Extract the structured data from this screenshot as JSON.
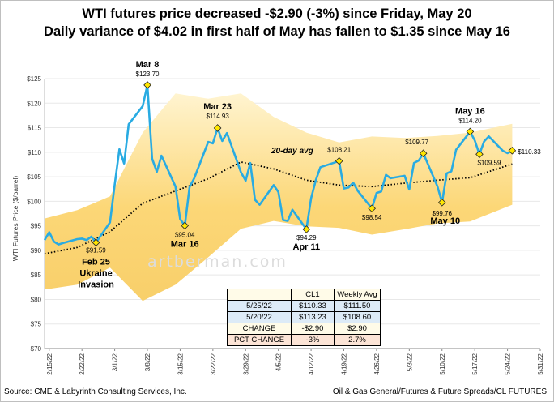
{
  "title_line1": "WTI futures price decreased -$2.90 (-3%) since Friday, May 20",
  "title_line2": "Daily variance of $4.02 in first half of May has fallen to $1.35 since May 16",
  "source": "Source: CME & Labyrinth Consulting Services, Inc.",
  "source_right": "Oil & Gas General/Futures & Future Spreads/CL FUTURES",
  "watermark": "artberman.com",
  "colors": {
    "price_line": "#29abe2",
    "band": "#fcd777",
    "avg_line": "#000000",
    "marker": "#ffe600"
  },
  "table": {
    "headers": [
      "",
      "CL1",
      "Weekly Avg"
    ],
    "rows": [
      [
        "5/25/22",
        "$110.33",
        "$111.50"
      ],
      [
        "5/20/22",
        "$113.23",
        "$108.60"
      ],
      [
        "CHANGE",
        "-$2.90",
        "$2.90"
      ],
      [
        "PCT CHANGE",
        "-3%",
        "2.7%"
      ]
    ]
  },
  "chart_data": {
    "type": "line",
    "ylabel": "WTI Futures Price ($/barrel)",
    "ylim": [
      70,
      125
    ],
    "yticks": [
      "$70",
      "$75",
      "$80",
      "$85",
      "$90",
      "$95",
      "$100",
      "$105",
      "$110",
      "$115",
      "$120",
      "$125"
    ],
    "xticks": [
      "2/15/22",
      "2/22/22",
      "3/1/22",
      "3/8/22",
      "3/15/22",
      "3/22/22",
      "3/29/22",
      "4/5/22",
      "4/12/22",
      "4/19/22",
      "4/26/22",
      "5/3/22",
      "5/10/22",
      "5/17/22",
      "5/24/22",
      "5/31/22"
    ],
    "series": [
      {
        "role": "price",
        "x": [
          "2/14/22",
          "2/15/22",
          "2/16/22",
          "2/17/22",
          "2/18/22",
          "2/21/22",
          "2/22/22",
          "2/23/22",
          "2/24/22",
          "2/25/22",
          "2/28/22",
          "3/1/22",
          "3/2/22",
          "3/3/22",
          "3/4/22",
          "3/7/22",
          "3/8/22",
          "3/9/22",
          "3/10/22",
          "3/11/22",
          "3/14/22",
          "3/15/22",
          "3/16/22",
          "3/17/22",
          "3/18/22",
          "3/21/22",
          "3/22/22",
          "3/23/22",
          "3/24/22",
          "3/25/22",
          "3/28/22",
          "3/29/22",
          "3/30/22",
          "3/31/22",
          "4/1/22",
          "4/4/22",
          "4/5/22",
          "4/6/22",
          "4/7/22",
          "4/8/22",
          "4/11/22",
          "4/12/22",
          "4/13/22",
          "4/14/22",
          "4/18/22",
          "4/19/22",
          "4/20/22",
          "4/21/22",
          "4/22/22",
          "4/25/22",
          "4/26/22",
          "4/27/22",
          "4/28/22",
          "4/29/22",
          "5/2/22",
          "5/3/22",
          "5/4/22",
          "5/5/22",
          "5/6/22",
          "5/9/22",
          "5/10/22",
          "5/11/22",
          "5/12/22",
          "5/13/22",
          "5/16/22",
          "5/17/22",
          "5/18/22",
          "5/19/22",
          "5/20/22",
          "5/23/22",
          "5/24/22",
          "5/25/22"
        ],
        "values": [
          92.1,
          93.7,
          91.8,
          91.2,
          91.5,
          92.3,
          92.4,
          92.1,
          92.8,
          91.6,
          95.7,
          103.4,
          110.6,
          107.7,
          115.7,
          119.4,
          123.7,
          108.7,
          106.0,
          109.3,
          103.0,
          96.4,
          95.04,
          102.9,
          104.7,
          112.1,
          111.8,
          114.93,
          112.3,
          113.9,
          105.9,
          104.2,
          107.8,
          100.3,
          99.3,
          103.3,
          101.9,
          96.2,
          96.0,
          98.3,
          94.29,
          100.6,
          104.3,
          106.95,
          108.21,
          102.6,
          102.8,
          103.8,
          102.1,
          98.54,
          101.7,
          102.0,
          105.4,
          104.7,
          105.2,
          102.4,
          107.8,
          108.3,
          109.77,
          103.09,
          99.76,
          105.7,
          106.1,
          110.5,
          114.2,
          112.4,
          109.59,
          112.2,
          113.23,
          110.3,
          109.8,
          110.33
        ]
      },
      {
        "role": "20-day avg",
        "x": [
          "2/14/22",
          "2/21/22",
          "2/28/22",
          "3/7/22",
          "3/14/22",
          "3/21/22",
          "3/28/22",
          "4/4/22",
          "4/11/22",
          "4/18/22",
          "4/25/22",
          "5/2/22",
          "5/9/22",
          "5/16/22",
          "5/25/22"
        ],
        "values": [
          89.3,
          90.6,
          93.8,
          99.6,
          102.1,
          104.6,
          108.0,
          106.6,
          104.3,
          103.3,
          103.0,
          103.7,
          104.3,
          104.8,
          107.6
        ]
      }
    ],
    "band": {
      "x": [
        "2/14/22",
        "2/21/22",
        "2/28/22",
        "3/7/22",
        "3/14/22",
        "3/21/22",
        "3/28/22",
        "4/4/22",
        "4/11/22",
        "4/18/22",
        "4/25/22",
        "5/2/22",
        "5/9/22",
        "5/16/22",
        "5/25/22"
      ],
      "upper": [
        96.5,
        98.2,
        101.0,
        114.0,
        122.0,
        120.9,
        122.0,
        117.2,
        114.0,
        112.0,
        113.2,
        112.9,
        113.3,
        114.0,
        115.8
      ],
      "lower": [
        82.0,
        83.0,
        86.5,
        79.7,
        83.0,
        88.6,
        94.4,
        96.0,
        94.9,
        94.6,
        93.2,
        94.3,
        95.5,
        95.9,
        99.3
      ]
    },
    "annotations": [
      {
        "date": "2/25/22",
        "value": 91.59,
        "price": "$91.59",
        "label": "Feb 25",
        "sub": "Ukraine",
        "sub2": "Invasion"
      },
      {
        "date": "3/8/22",
        "value": 123.7,
        "price": "$123.70",
        "label": "Mar 8"
      },
      {
        "date": "3/16/22",
        "value": 95.04,
        "price": "$95.04",
        "label": "Mar 16"
      },
      {
        "date": "3/23/22",
        "value": 114.93,
        "price": "$114.93",
        "label": "Mar 23"
      },
      {
        "date": "4/11/22",
        "value": 94.29,
        "price": "$94.29",
        "label": "Apr 11"
      },
      {
        "date": "4/18/22",
        "value": 108.21,
        "price": "$108.21",
        "label": ""
      },
      {
        "date": "4/25/22",
        "value": 98.54,
        "price": "$98.54",
        "label": ""
      },
      {
        "date": "5/6/22",
        "value": 109.77,
        "price": "$109.77",
        "label": ""
      },
      {
        "date": "5/10/22",
        "value": 99.76,
        "price": "$99.76",
        "label": "May 10"
      },
      {
        "date": "5/16/22",
        "value": 114.2,
        "price": "$114.20",
        "label": "May 16"
      },
      {
        "date": "5/18/22",
        "value": 109.59,
        "price": "$109.59",
        "label": ""
      },
      {
        "date": "5/25/22",
        "value": 110.33,
        "price": "$110.33",
        "label": ""
      }
    ],
    "avg_label": "20-day avg",
    "grid": true
  }
}
